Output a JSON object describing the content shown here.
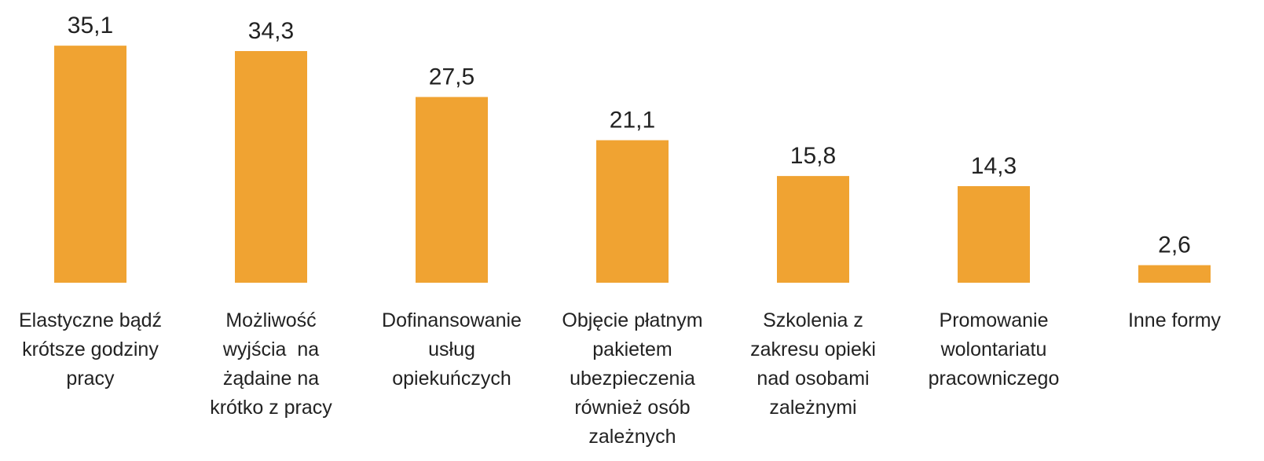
{
  "chart_data": {
    "type": "bar",
    "categories": [
      "Elastyczne bądź\nkrótsze godziny\npracy",
      "Możliwość\nwyjścia  na\nżądaine na\nkrótko z pracy",
      "Dofinansowanie\nusług\nopiekuńczych",
      "Objęcie płatnym\npakietem\nubezpieczenia\nrównież osób\nzależnych",
      "Szkolenia z\nzakresu opieki\nnad osobami\nzależnymi",
      "Promowanie\nwolontariatu\npracowniczego",
      "Inne formy"
    ],
    "values": [
      35.1,
      34.3,
      27.5,
      21.1,
      15.8,
      14.3,
      2.6
    ],
    "value_labels": [
      "35,1",
      "34,3",
      "27,5",
      "21,1",
      "15,8",
      "14,3",
      "2,6"
    ],
    "color": "#f0a332",
    "ylim": [
      0,
      40
    ]
  }
}
